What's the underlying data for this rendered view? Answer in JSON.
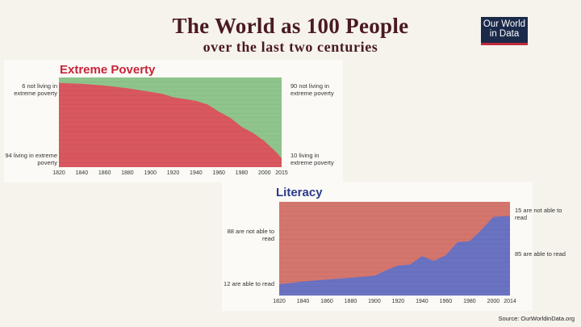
{
  "header": {
    "title": "The World as 100 People",
    "subtitle": "over the last two centuries"
  },
  "logo": {
    "line1": "Our World",
    "line2": "in Data"
  },
  "source": "Source: OurWorldinData.org",
  "colors": {
    "poverty_red": "#d9575e",
    "poverty_green": "#8fc58d",
    "literacy_red": "#d4766d",
    "literacy_blue": "#6a72c2",
    "title_red": "#c9243a",
    "title_blue": "#2b3a8c"
  },
  "chart_data": [
    {
      "type": "area",
      "title": "Extreme Poverty",
      "x": [
        1820,
        1840,
        1860,
        1880,
        1890,
        1900,
        1910,
        1920,
        1930,
        1940,
        1950,
        1960,
        1970,
        1980,
        1990,
        2000,
        2010,
        2015
      ],
      "xticks": [
        1820,
        1840,
        1860,
        1880,
        1900,
        1920,
        1940,
        1960,
        1980,
        2000,
        2015
      ],
      "series": [
        {
          "name": "living in extreme poverty",
          "values": [
            94,
            93,
            91,
            88,
            86,
            84,
            82,
            78,
            76,
            74,
            70,
            62,
            55,
            45,
            38,
            29,
            17,
            10
          ]
        },
        {
          "name": "not living in extreme poverty",
          "values": [
            6,
            7,
            9,
            12,
            14,
            16,
            18,
            22,
            24,
            26,
            30,
            38,
            45,
            55,
            62,
            71,
            83,
            90
          ]
        }
      ],
      "ylim": [
        0,
        100
      ],
      "annotations": {
        "top_left": "6 not living in extreme poverty",
        "bottom_left": "94 living in extreme poverty",
        "top_right": "90 not living in extreme poverty",
        "bottom_right": "10 living in extreme poverty"
      }
    },
    {
      "type": "area",
      "title": "Literacy",
      "x": [
        1820,
        1840,
        1860,
        1880,
        1900,
        1910,
        1920,
        1930,
        1940,
        1950,
        1960,
        1970,
        1980,
        1990,
        2000,
        2014
      ],
      "xticks": [
        1820,
        1840,
        1860,
        1880,
        1900,
        1920,
        1940,
        1960,
        1980,
        2000,
        2014
      ],
      "series": [
        {
          "name": "able to read",
          "values": [
            12,
            15,
            17,
            19,
            21,
            27,
            32,
            33,
            42,
            37,
            43,
            57,
            58,
            70,
            84,
            85
          ]
        },
        {
          "name": "not able to read",
          "values": [
            88,
            85,
            83,
            81,
            79,
            73,
            68,
            67,
            58,
            63,
            57,
            43,
            42,
            30,
            16,
            15
          ]
        }
      ],
      "ylim": [
        0,
        100
      ],
      "annotations": {
        "top_left": "88 are not able to read",
        "bottom_left": "12 are able to read",
        "top_right": "15 are not able to read",
        "bottom_right": "85 are able to read"
      }
    }
  ]
}
